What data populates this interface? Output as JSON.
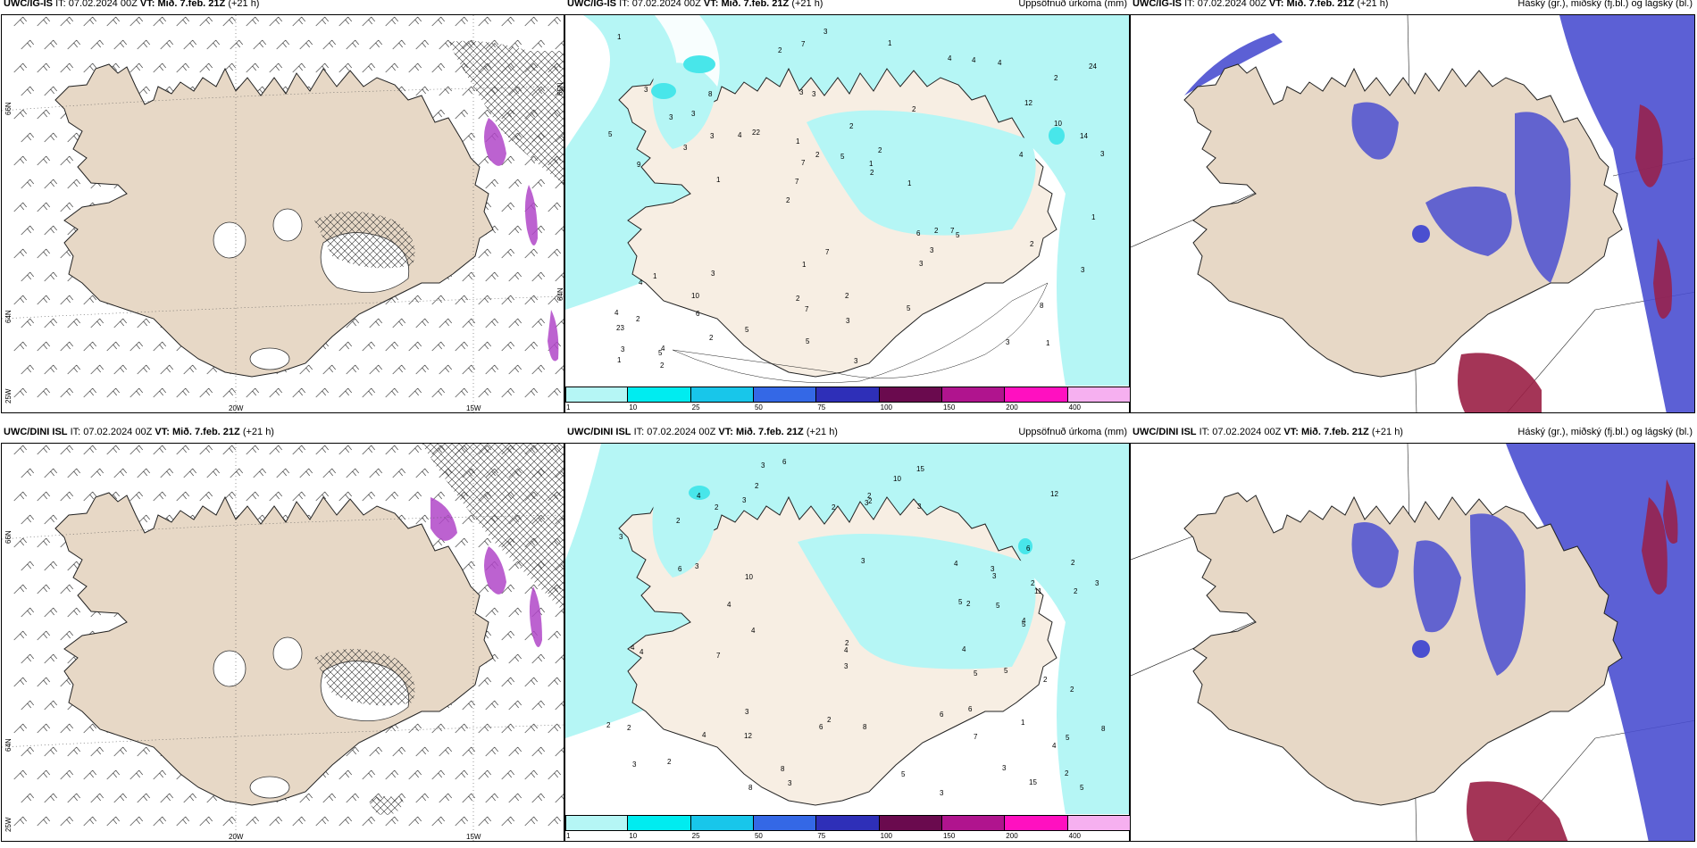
{
  "colors": {
    "land": "#e7d8c6",
    "land_light": "#f7eee3",
    "precip_light": "#b5f6f5",
    "precip_mid": "#48e6ea",
    "cloud_low": "#d7d9f0",
    "cloud_mid": "#4a4fd0",
    "cloud_high": "#9a1f45"
  },
  "rows": [
    {
      "model": "UWC/IG-IS",
      "issue_label": "IT:",
      "issue_time": "07.02.2024 00Z",
      "valid_label": "VT:",
      "valid_time": "Mið. 7.feb. 21Z",
      "lead": "(+21 h)"
    },
    {
      "model": "UWC/DINI ISL",
      "issue_label": "IT:",
      "issue_time": "07.02.2024 00Z",
      "valid_label": "VT:",
      "valid_time": "Mið. 7.feb. 21Z",
      "lead": "(+21 h)"
    }
  ],
  "precip_title": "Uppsöfnuð úrkoma (mm)",
  "cloud_title": "Háský (gr.), miðský (fj.bl.) og lágský (bl.)",
  "legend": {
    "ticks": [
      "1",
      "10",
      "25",
      "50",
      "75",
      "100",
      "150",
      "200",
      "400"
    ],
    "colors": [
      "#b5f6f5",
      "#00ecf0",
      "#18c6ea",
      "#3468e6",
      "#2e2fb8",
      "#6a0a4e",
      "#b0148e",
      "#ff10c0",
      "#f6b0f0"
    ]
  },
  "wind_axes": {
    "lon_labels": [
      "20W",
      "15W"
    ],
    "lat_labels": [
      "66N",
      "64N",
      "25W"
    ],
    "right_labels": [
      "65N",
      "64N"
    ]
  },
  "precip_labels_top": [
    "1",
    "9",
    "2",
    "2",
    "2",
    "4",
    "3",
    "2",
    "1",
    "22",
    "23",
    "6",
    "3",
    "2",
    "5",
    "3",
    "7",
    "3",
    "6",
    "10",
    "7",
    "2",
    "7",
    "8",
    "4",
    "3",
    "3",
    "8",
    "7",
    "3",
    "4",
    "3",
    "3",
    "2",
    "14",
    "1",
    "3",
    "7",
    "2",
    "4",
    "12",
    "24",
    "3",
    "5",
    "10",
    "2",
    "1",
    "2",
    "4",
    "3",
    "1",
    "5",
    "3",
    "4",
    "5",
    "1",
    "2",
    "2",
    "3",
    "1",
    "5",
    "2",
    "3",
    "4",
    "1",
    "3",
    "1",
    "1",
    "3",
    "5",
    "2",
    "1",
    "2",
    "5",
    "4",
    "7"
  ],
  "precip_labels_bottom": [
    "1",
    "2",
    "5",
    "3",
    "3",
    "2",
    "2",
    "12",
    "12",
    "3",
    "2",
    "3",
    "4",
    "3",
    "2",
    "2",
    "4",
    "3",
    "2",
    "11",
    "4",
    "4",
    "5",
    "5",
    "8",
    "6",
    "10",
    "3",
    "4",
    "8",
    "7",
    "7",
    "8",
    "4",
    "2",
    "3",
    "2",
    "2",
    "15",
    "4",
    "5",
    "5",
    "3",
    "4",
    "2",
    "5",
    "2",
    "15",
    "10",
    "3",
    "4",
    "3",
    "2",
    "3",
    "6",
    "4",
    "3",
    "4",
    "3",
    "2",
    "6",
    "6",
    "5",
    "8",
    "2",
    "2",
    "2",
    "2",
    "3",
    "6",
    "6",
    "5",
    "3"
  ]
}
